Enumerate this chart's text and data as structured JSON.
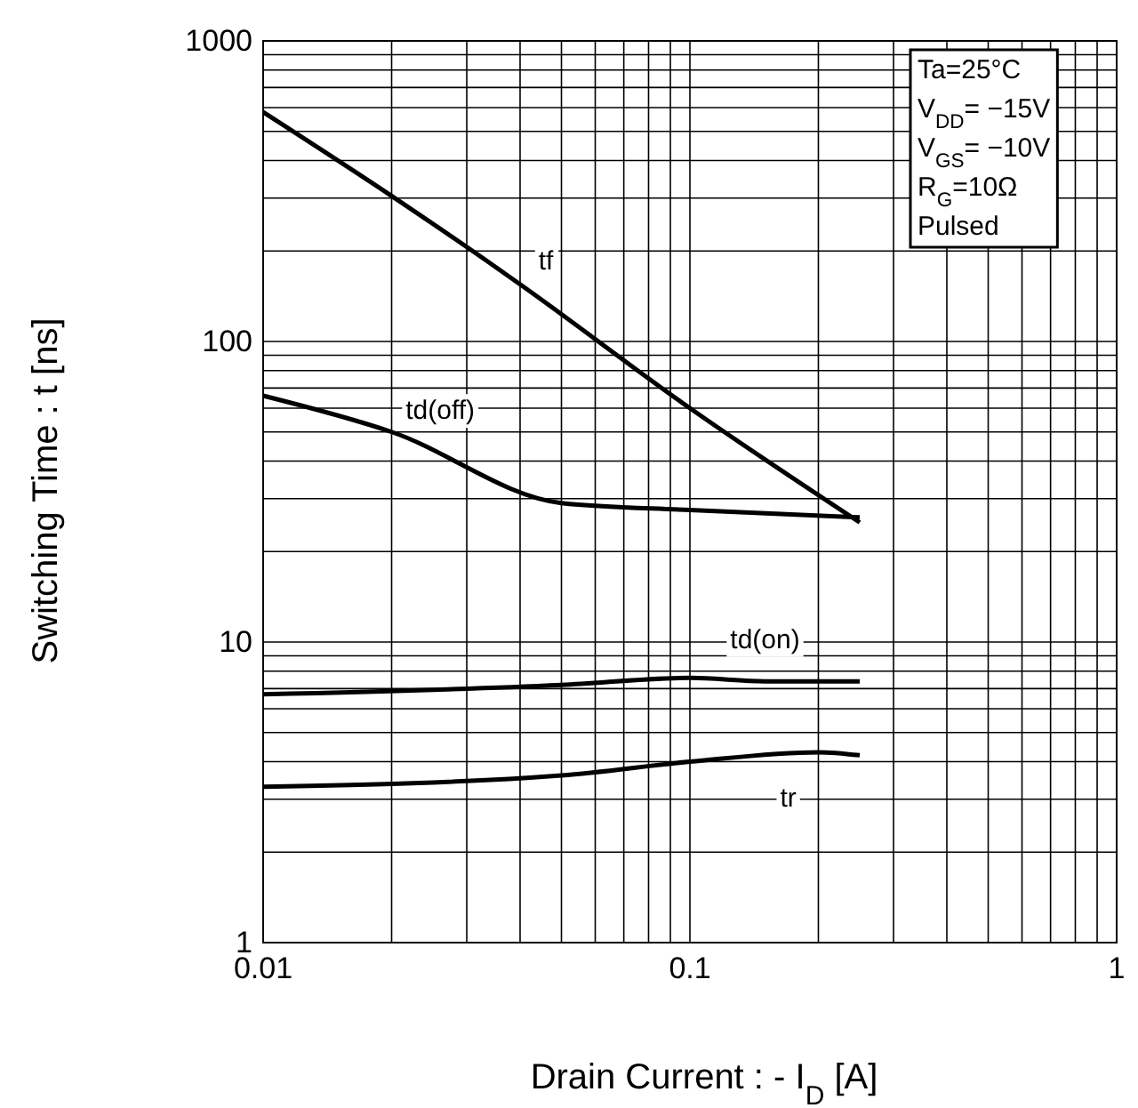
{
  "chart_data": {
    "type": "line",
    "xlabel": "Drain Current : - I$_{D}$ [A]",
    "ylabel": "Switching Time : t [ns]",
    "log": "xy",
    "grid": true,
    "line_style": "solid",
    "xlim": [
      0.01,
      1
    ],
    "ylim": [
      1,
      1000
    ],
    "xticks": [
      0.01,
      {
        "value": 0.02,
        "label": null
      },
      {
        "value": 0.03,
        "label": null
      },
      {
        "value": 0.04,
        "label": null
      },
      {
        "value": 0.05,
        "label": null
      },
      {
        "value": 0.06,
        "label": null
      },
      {
        "value": 0.07,
        "label": null
      },
      {
        "value": 0.08,
        "label": null
      },
      {
        "value": 0.09,
        "label": null
      },
      0.1,
      {
        "value": 0.2,
        "label": null
      },
      {
        "value": 0.3,
        "label": null
      },
      {
        "value": 0.4,
        "label": null
      },
      {
        "value": 0.5,
        "label": null
      },
      {
        "value": 0.6,
        "label": null
      },
      {
        "value": 0.7,
        "label": null
      },
      {
        "value": 0.8,
        "label": null
      },
      {
        "value": 0.9,
        "label": null
      },
      1
    ],
    "yticks": [
      1,
      {
        "value": 2,
        "label": null
      },
      {
        "value": 3,
        "label": null
      },
      {
        "value": 4,
        "label": null
      },
      {
        "value": 5,
        "label": null
      },
      {
        "value": 6,
        "label": null
      },
      {
        "value": 7,
        "label": null
      },
      {
        "value": 8,
        "label": null
      },
      {
        "value": 9,
        "label": null
      },
      10,
      {
        "value": 20,
        "label": null
      },
      {
        "value": 30,
        "label": null
      },
      {
        "value": 40,
        "label": null
      },
      {
        "value": 50,
        "label": null
      },
      {
        "value": 60,
        "label": null
      },
      {
        "value": 70,
        "label": null
      },
      {
        "value": 80,
        "label": null
      },
      {
        "value": 90,
        "label": null
      },
      100,
      {
        "value": 200,
        "label": null
      },
      {
        "value": 300,
        "label": null
      },
      {
        "value": 400,
        "label": null
      },
      {
        "value": 500,
        "label": null
      },
      {
        "value": 600,
        "label": null
      },
      {
        "value": 700,
        "label": null
      },
      {
        "value": 800,
        "label": null
      },
      {
        "value": 900,
        "label": null
      },
      1000
    ],
    "series": [
      {
        "name": "tf",
        "color": "#000000",
        "x": [
          0.01,
          0.02,
          0.04,
          0.1,
          0.25
        ],
        "values": [
          580,
          305,
          155,
          60,
          25
        ]
      },
      {
        "name": "td(off)",
        "color": "#000000",
        "x": [
          0.01,
          0.02,
          0.05,
          0.1,
          0.25
        ],
        "values": [
          66,
          50,
          29,
          27.5,
          26
        ]
      },
      {
        "name": "td(on)",
        "color": "#000000",
        "x": [
          0.01,
          0.05,
          0.1,
          0.15,
          0.25
        ],
        "values": [
          6.7,
          7.2,
          7.6,
          7.4,
          7.4
        ]
      },
      {
        "name": "tr",
        "color": "#000000",
        "x": [
          0.01,
          0.05,
          0.1,
          0.2,
          0.25
        ],
        "values": [
          3.3,
          3.6,
          4.0,
          4.3,
          4.2
        ]
      }
    ],
    "annotations": [
      "Ta=25°C",
      "V$_{DD}$= −15V",
      "V$_{GS}$= −10V",
      "R$_{G}$=10Ω",
      "Pulsed"
    ]
  }
}
